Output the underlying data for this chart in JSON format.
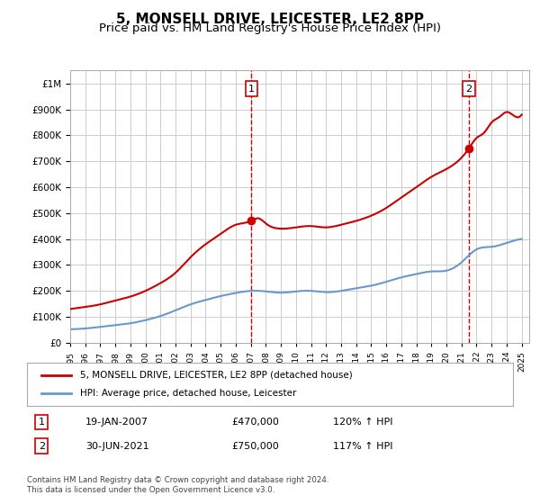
{
  "title": "5, MONSELL DRIVE, LEICESTER, LE2 8PP",
  "subtitle": "Price paid vs. HM Land Registry's House Price Index (HPI)",
  "ylabel": "",
  "xlabel": "",
  "ylim": [
    0,
    1000000
  ],
  "xlim_start": 1995.0,
  "xlim_end": 2025.5,
  "red_line_color": "#cc0000",
  "blue_line_color": "#6699cc",
  "marker1_date": 2007.05,
  "marker1_value": 470000,
  "marker2_date": 2021.5,
  "marker2_value": 750000,
  "annotation1_label": "1",
  "annotation2_label": "2",
  "legend_red": "5, MONSELL DRIVE, LEICESTER, LE2 8PP (detached house)",
  "legend_blue": "HPI: Average price, detached house, Leicester",
  "table_row1": [
    "1",
    "19-JAN-2007",
    "£470,000",
    "120% ↑ HPI"
  ],
  "table_row2": [
    "2",
    "30-JUN-2021",
    "£750,000",
    "117% ↑ HPI"
  ],
  "footer": "Contains HM Land Registry data © Crown copyright and database right 2024.\nThis data is licensed under the Open Government Licence v3.0.",
  "background_color": "#ffffff",
  "grid_color": "#cccccc",
  "title_fontsize": 11,
  "subtitle_fontsize": 9.5
}
